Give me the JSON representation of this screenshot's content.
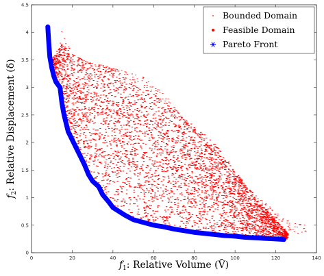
{
  "chart_data": {
    "type": "scatter",
    "title": "",
    "xlabel": {
      "sym": "f",
      "sub": "1",
      "text": ": Relative Volume (V̄)"
    },
    "ylabel": {
      "sym": "f",
      "sub": "2",
      "text": ": Relative Displacement (δ̄)"
    },
    "xlim": [
      0,
      140
    ],
    "ylim": [
      0,
      4.5
    ],
    "xticks": [
      "0",
      "20",
      "40",
      "60",
      "80",
      "100",
      "120",
      "140"
    ],
    "yticks": [
      "0",
      "0.5",
      "1",
      "1.5",
      "2",
      "2.5",
      "3",
      "3.5",
      "4",
      "4.5"
    ],
    "grid": false,
    "legend_position": "top-right",
    "series": [
      {
        "name": "Bounded Domain",
        "marker": "dot-small",
        "color": "#ff0000",
        "x": [
          14,
          20,
          28,
          36,
          45,
          55,
          65,
          75,
          85,
          95,
          105,
          115,
          125,
          135
        ],
        "y": [
          4.1,
          3.6,
          3.45,
          3.4,
          3.3,
          3.2,
          2.9,
          2.4,
          2.0,
          1.6,
          1.2,
          0.9,
          0.6,
          0.5
        ]
      },
      {
        "name": "Feasible Domain",
        "marker": "dot",
        "color": "#ff0000",
        "x": [
          10,
          15,
          20,
          25,
          30,
          35,
          40,
          50,
          60,
          70,
          80,
          90,
          100,
          110,
          120,
          126
        ],
        "y": [
          3.5,
          3.8,
          3.6,
          3.5,
          3.4,
          3.35,
          3.3,
          3.1,
          2.9,
          2.6,
          2.3,
          2.0,
          1.5,
          1.0,
          0.6,
          0.35
        ]
      },
      {
        "name": "Pareto Front",
        "marker": "asterisk",
        "color": "#0000ff",
        "x": [
          8,
          8.5,
          9,
          10,
          11,
          12,
          13,
          14,
          15,
          16,
          17,
          18,
          20,
          22,
          24,
          26,
          28,
          30,
          33,
          35,
          38,
          40,
          43,
          46,
          50,
          55,
          60,
          65,
          70,
          75,
          80,
          85,
          90,
          95,
          100,
          105,
          110,
          115,
          120,
          124
        ],
        "y": [
          4.1,
          3.8,
          3.55,
          3.35,
          3.2,
          3.1,
          3.05,
          3.0,
          2.7,
          2.5,
          2.35,
          2.2,
          2.05,
          1.9,
          1.75,
          1.6,
          1.42,
          1.3,
          1.2,
          1.05,
          0.92,
          0.82,
          0.75,
          0.68,
          0.6,
          0.55,
          0.5,
          0.47,
          0.43,
          0.4,
          0.37,
          0.35,
          0.33,
          0.31,
          0.3,
          0.28,
          0.27,
          0.26,
          0.25,
          0.24
        ]
      }
    ]
  }
}
